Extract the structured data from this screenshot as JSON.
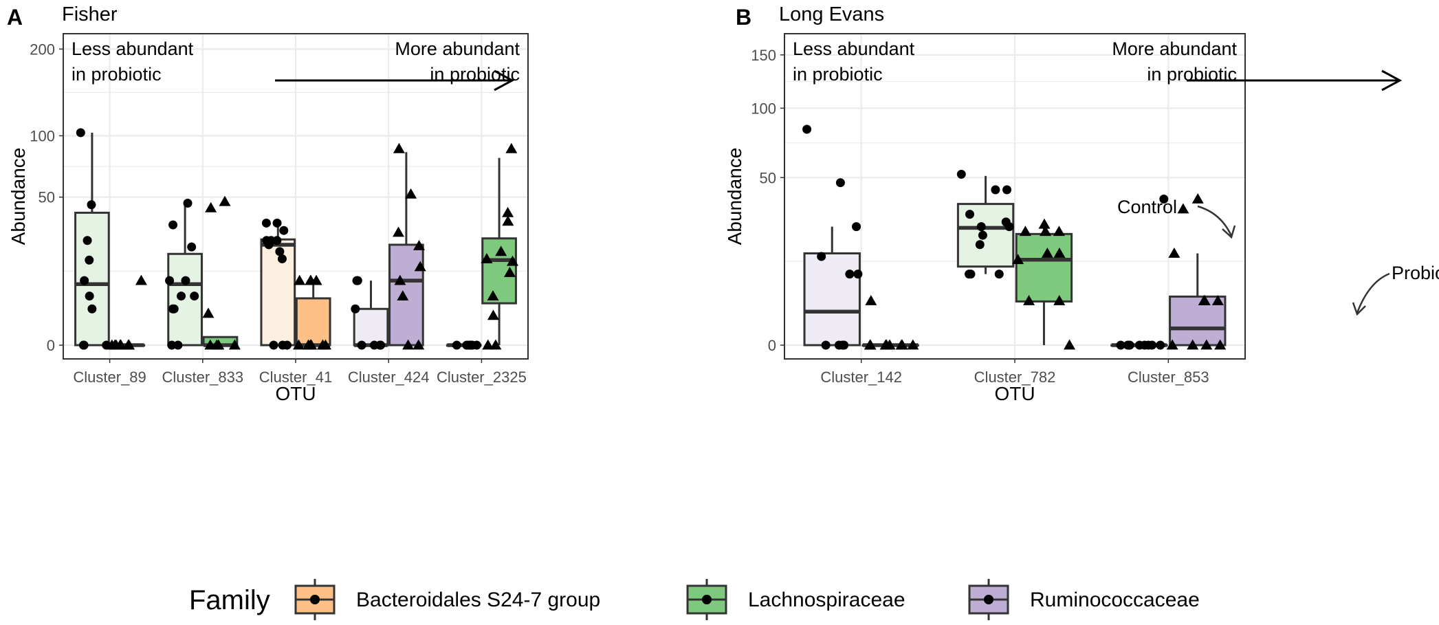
{
  "panel_labels": [
    "A",
    "B"
  ],
  "colors": {
    "bacteroidales_fill": "#fdc086",
    "bacteroidales_light": "#fef0e1",
    "lachno_fill": "#7fc97f",
    "lachno_light": "#e4f3e4",
    "rumino_fill": "#beaed4",
    "rumino_light": "#efebf5",
    "box_stroke": "#333333",
    "grid": "#ebebeb",
    "point": "#000000"
  },
  "chart_data": [
    {
      "type": "box",
      "panel": "A",
      "title": "Fisher",
      "xlabel": "OTU",
      "ylabel": "Abundance",
      "y_scale": "sqrt",
      "ylim": [
        0,
        205
      ],
      "yticks": [
        0,
        50,
        100,
        200
      ],
      "ytick_labels": [
        "0",
        "50",
        "100",
        "200"
      ],
      "annotation": {
        "left_line1": "Less abundant",
        "left_line2": "in probiotic",
        "right_line1": "More abundant",
        "right_line2": "in probiotic"
      },
      "categories": [
        "Cluster_89",
        "Cluster_833",
        "Cluster_41",
        "Cluster_424",
        "Cluster_2325"
      ],
      "groups": [
        {
          "otu": "Cluster_89",
          "group": "Control",
          "family": "Lachnospiraceae",
          "box": {
            "min": 0,
            "q1": 0,
            "median": 8.5,
            "q3": 40,
            "max": 103
          },
          "points": [
            103,
            45,
            25,
            16.5,
            9.5,
            5.5,
            3,
            0,
            0,
            0
          ]
        },
        {
          "otu": "Cluster_89",
          "group": "Probiotic",
          "family": "Lachnospiraceae",
          "box": {
            "min": 0,
            "q1": 0,
            "median": 0,
            "q3": 0,
            "max": 0
          },
          "points": [
            9.5,
            0,
            0,
            0,
            0,
            0,
            0,
            0,
            0
          ]
        },
        {
          "otu": "Cluster_833",
          "group": "Control",
          "family": "Lachnospiraceae",
          "box": {
            "min": 0,
            "q1": 0,
            "median": 8.5,
            "q3": 19,
            "max": 46
          },
          "points": [
            46,
            33,
            22,
            9.5,
            9.5,
            5.5,
            5.5,
            3,
            3,
            0,
            0
          ]
        },
        {
          "otu": "Cluster_833",
          "group": "Probiotic",
          "family": "Lachnospiraceae",
          "box": {
            "min": 0,
            "q1": 0,
            "median": 0,
            "q3": 0.15,
            "max": 0.15
          },
          "points": [
            47,
            43,
            2.3,
            0,
            0,
            0,
            0
          ]
        },
        {
          "otu": "Cluster_41",
          "group": "Control",
          "family": "Bacteroidales S24-7 group",
          "box": {
            "min": 0,
            "q1": 0,
            "median": 23,
            "q3": 25.5,
            "max": 34
          },
          "points": [
            34,
            34,
            30,
            25,
            25,
            25,
            23,
            20,
            17,
            0,
            0,
            0
          ]
        },
        {
          "otu": "Cluster_41",
          "group": "Probiotic",
          "family": "Bacteroidales S24-7 group",
          "box": {
            "min": 0,
            "q1": 0,
            "median": 0,
            "q3": 5,
            "max": 9.5
          },
          "points": [
            9.5,
            9.5,
            9.5,
            9.5,
            0,
            0,
            0,
            0,
            0,
            0
          ]
        },
        {
          "otu": "Cluster_424",
          "group": "Control",
          "family": "Ruminococcaceae",
          "box": {
            "min": 0,
            "q1": 0,
            "median": 0,
            "q3": 3,
            "max": 9.5
          },
          "points": [
            9.5,
            9.5,
            3,
            0,
            0,
            0,
            0
          ]
        },
        {
          "otu": "Cluster_424",
          "group": "Probiotic",
          "family": "Ruminococcaceae",
          "box": {
            "min": 0,
            "q1": 0,
            "median": 9.5,
            "q3": 23,
            "max": 85
          },
          "points": [
            88,
            52,
            29,
            22.5,
            14,
            9.5,
            5.5,
            0,
            0
          ]
        },
        {
          "otu": "Cluster_2325",
          "group": "Control",
          "family": "Lachnospiraceae",
          "box": {
            "min": 0,
            "q1": 0,
            "median": 0,
            "q3": 0,
            "max": 0
          },
          "points": [
            0,
            0,
            0,
            0,
            0,
            0,
            0,
            0
          ]
        },
        {
          "otu": "Cluster_2325",
          "group": "Probiotic",
          "family": "Lachnospiraceae",
          "box": {
            "min": 0,
            "q1": 4,
            "median": 16.5,
            "q3": 26,
            "max": 80
          },
          "points": [
            88,
            40,
            35,
            20,
            17,
            16,
            12,
            5.5,
            2,
            0,
            0
          ]
        }
      ]
    },
    {
      "type": "box",
      "panel": "B",
      "title": "Long Evans",
      "xlabel": "OTU",
      "ylabel": "Abundance",
      "y_scale": "sqrt",
      "ylim": [
        0,
        160
      ],
      "yticks": [
        0,
        50,
        100,
        150
      ],
      "ytick_labels": [
        "0",
        "50",
        "100",
        "150"
      ],
      "annotation": {
        "left_line1": "Less abundant",
        "left_line2": "in probiotic",
        "right_line1": "More abundant",
        "right_line2": "in probiotic"
      },
      "callouts": [
        "Control",
        "Probiotic"
      ],
      "categories": [
        "Cluster_142",
        "Cluster_782",
        "Cluster_853"
      ],
      "groups": [
        {
          "otu": "Cluster_142",
          "group": "Control",
          "family": "Ruminococcaceae",
          "box": {
            "min": 0,
            "q1": 0,
            "median": 2,
            "q3": 15,
            "max": 25
          },
          "points": [
            83,
            47,
            25,
            14,
            9,
            9,
            0,
            0,
            0,
            0
          ]
        },
        {
          "otu": "Cluster_142",
          "group": "Probiotic",
          "family": "Ruminococcaceae",
          "box": {
            "min": 0,
            "q1": 0,
            "median": 0,
            "q3": 0,
            "max": 0
          },
          "points": [
            3.5,
            0,
            0,
            0,
            0,
            0,
            0,
            0,
            0
          ]
        },
        {
          "otu": "Cluster_782",
          "group": "Control",
          "family": "Lachnospiraceae",
          "box": {
            "min": 9,
            "q1": 11,
            "median": 24.5,
            "q3": 35.5,
            "max": 51
          },
          "points": [
            52,
            43,
            43,
            30.5,
            27,
            25,
            25,
            21.5,
            18,
            9,
            9,
            9
          ]
        },
        {
          "otu": "Cluster_782",
          "group": "Probiotic",
          "family": "Lachnospiraceae",
          "box": {
            "min": 0,
            "q1": 3.4,
            "median": 13,
            "q3": 22,
            "max": 26
          },
          "points": [
            26,
            23,
            23,
            23,
            15,
            15,
            13,
            3.5,
            3.5,
            0
          ]
        },
        {
          "otu": "Cluster_853",
          "group": "Control",
          "family": "Ruminococcaceae",
          "box": {
            "min": 0,
            "q1": 0,
            "median": 0,
            "q3": 0,
            "max": 0
          },
          "points": [
            38,
            0,
            0,
            0,
            0,
            0,
            0,
            0,
            0
          ]
        },
        {
          "otu": "Cluster_853",
          "group": "Probiotic",
          "family": "Ruminococcaceae",
          "box": {
            "min": 0,
            "q1": 0,
            "median": 0.5,
            "q3": 4.2,
            "max": 15
          },
          "points": [
            38,
            33,
            15,
            3.5,
            3.5,
            3.5,
            0,
            0,
            0,
            0
          ]
        }
      ]
    }
  ],
  "legend": {
    "title": "Family",
    "items": [
      {
        "label": "Bacteroidales S24-7 group",
        "color": "#fdc086"
      },
      {
        "label": "Lachnospiraceae",
        "color": "#7fc97f"
      },
      {
        "label": "Ruminococcaceae",
        "color": "#beaed4"
      }
    ]
  }
}
